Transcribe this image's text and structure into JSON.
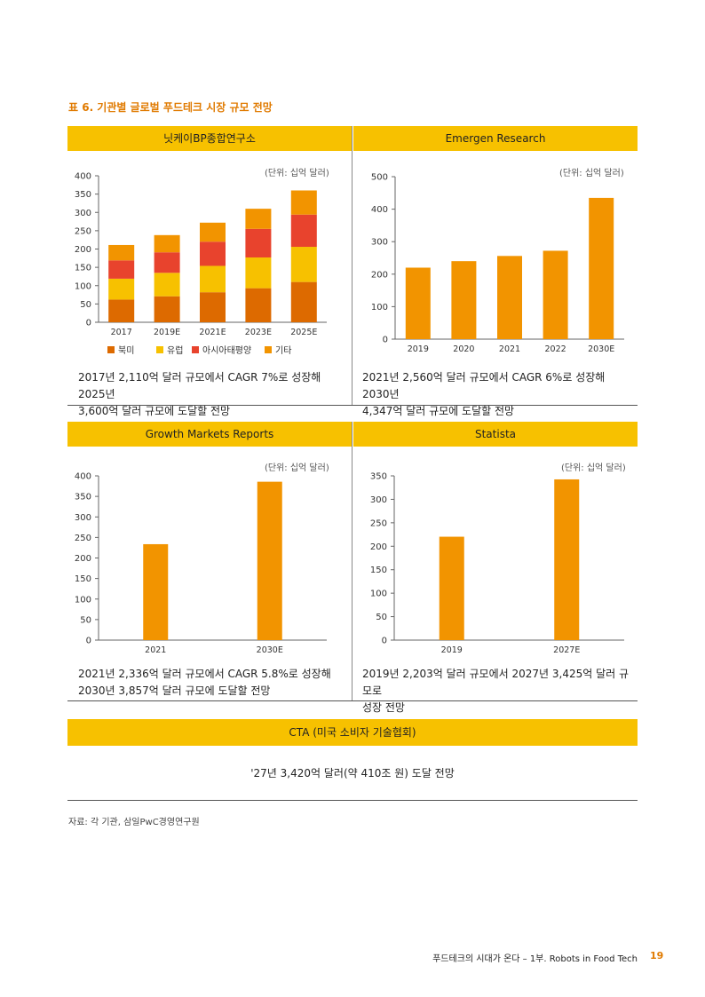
{
  "title": "표 6. 기관별 글로벌 푸드테크 시장 규모 전망",
  "unit_label": "(단위: 십억 달러)",
  "panels": [
    {
      "source": "닛케이BP종합연구소",
      "caption_line1": "2017년 2,110억 달러 규모에서 CAGR 7%로 성장해 2025년",
      "caption_line2": "3,600억 달러 규모에 도달할 전망"
    },
    {
      "source": "Emergen Research",
      "caption_line1": "2021년 2,560억 달러 규모에서 CAGR 6%로 성장해 2030년",
      "caption_line2": "4,347억 달러 규모에 도달할 전망"
    },
    {
      "source": "Growth Markets Reports",
      "caption_line1": "2021년 2,336억 달러 규모에서 CAGR 5.8%로 성장해",
      "caption_line2": "2030년 3,857억 달러 규모에 도달할 전망"
    },
    {
      "source": "Statista",
      "caption_line1": "2019년 2,203억 달러 규모에서 2027년 3,425억 달러 규모로",
      "caption_line2": "성장 전망"
    }
  ],
  "cta": {
    "source": "CTA (미국 소비자 기술협회)",
    "text": "'27년 3,420억 달러(약 410조 원) 도달 전망"
  },
  "source_note": "자료: 각 기관, 삼일PwC경영연구원",
  "footer": {
    "text": "푸드테크의 시대가 온다 – 1부. Robots in Food Tech",
    "page": "19"
  },
  "colors": {
    "band": "#f7c100",
    "bar": "#f29400",
    "north_america": "#dd6a00",
    "europe": "#f7c100",
    "asia_pacific": "#e8432d",
    "other": "#f29400",
    "title": "#e07a00"
  },
  "chart_data": [
    {
      "type": "bar",
      "stacked": true,
      "title": "",
      "categories": [
        "2017",
        "2019E",
        "2021E",
        "2023E",
        "2025E"
      ],
      "series": [
        {
          "name": "북미",
          "values": [
            62,
            71,
            82,
            93,
            110
          ]
        },
        {
          "name": "유럽",
          "values": [
            57,
            64,
            72,
            84,
            96
          ]
        },
        {
          "name": "아시아태평양",
          "values": [
            50,
            56,
            66,
            78,
            88
          ]
        },
        {
          "name": "기타",
          "values": [
            42,
            47,
            52,
            55,
            66
          ]
        }
      ],
      "ylim": [
        0,
        400
      ],
      "yticks": [
        0,
        50,
        100,
        150,
        200,
        250,
        300,
        350,
        400
      ],
      "legend": "bottom"
    },
    {
      "type": "bar",
      "title": "",
      "categories": [
        "2019",
        "2020",
        "2021",
        "2022",
        "2030E"
      ],
      "values": [
        220,
        240,
        256,
        272,
        434.7
      ],
      "ylim": [
        0,
        500
      ],
      "yticks": [
        0,
        100,
        200,
        300,
        400,
        500
      ]
    },
    {
      "type": "bar",
      "title": "",
      "categories": [
        "2021",
        "2030E"
      ],
      "values": [
        233.6,
        385.7
      ],
      "ylim": [
        0,
        400
      ],
      "yticks": [
        0,
        50,
        100,
        150,
        200,
        250,
        300,
        350,
        400
      ]
    },
    {
      "type": "bar",
      "title": "",
      "categories": [
        "2019",
        "2027E"
      ],
      "values": [
        220.3,
        342.5
      ],
      "ylim": [
        0,
        350
      ],
      "yticks": [
        0,
        50,
        100,
        150,
        200,
        250,
        300,
        350
      ]
    }
  ]
}
